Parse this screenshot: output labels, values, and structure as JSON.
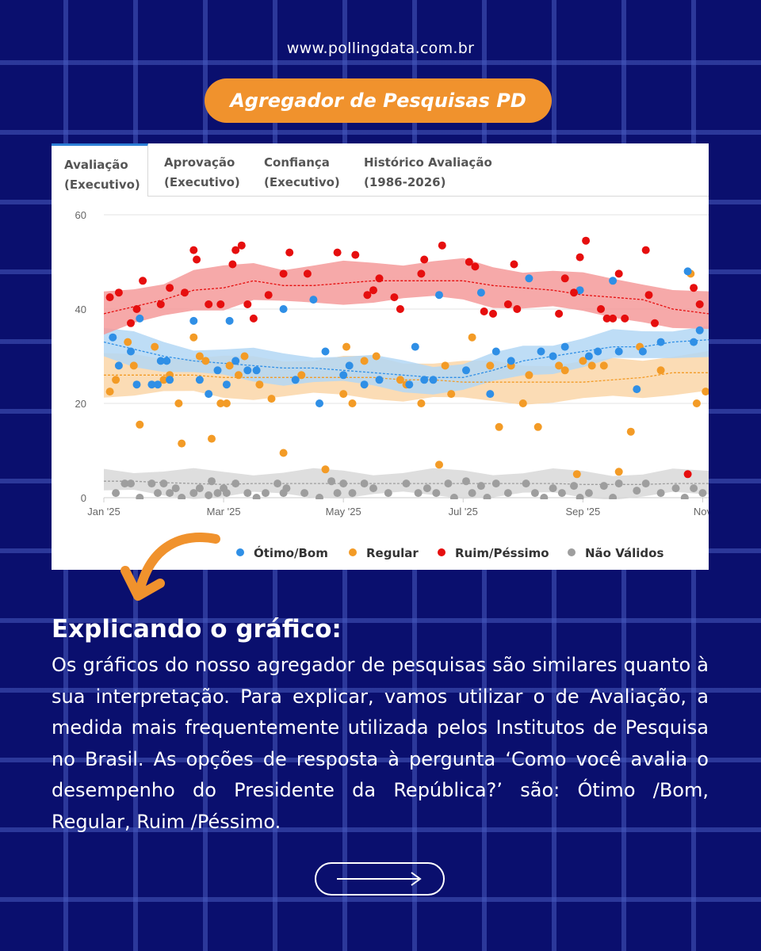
{
  "site_url": "www.pollingdata.com.br",
  "title": "Agregador de Pesquisas PD",
  "tabs": [
    {
      "line1": "Avaliação",
      "line2": "(Executivo)"
    },
    {
      "line1": "Aprovação",
      "line2": "(Executivo)"
    },
    {
      "line1": "Confiança",
      "line2": "(Executivo)"
    },
    {
      "line1": "Histórico Avaliação",
      "line2": "(1986-2026)"
    }
  ],
  "explanation": {
    "heading": "Explicando o gráfico:",
    "body": "Os gráficos do nosso agregador de pesquisas são similares quanto à sua interpretação. Para explicar, vamos utilizar o de Avaliação, a medida mais frequentemente utilizada pelos Institutos de Pesquisa no Brasil. As opções de resposta à pergunta ‘Como você avalia o desempenho do Presidente da República?’ são: Ótimo /Bom, Regular, Ruim /Péssimo."
  },
  "icons": {
    "pointer_arrow": "curved-arrow-icon",
    "next": "right-arrow-icon"
  },
  "chart_data": {
    "type": "scatter",
    "x_tick_labels": [
      "Jan '25",
      "Mar '25",
      "May '25",
      "Jul '25",
      "Sep '25",
      "Nov"
    ],
    "x_tick_months": [
      0,
      2,
      4,
      6,
      8,
      10
    ],
    "y_ticks": [
      0,
      20,
      40,
      60
    ],
    "ylim": [
      0,
      60
    ],
    "xlim_months": [
      0,
      10.1
    ],
    "grid": "horizontal",
    "legend_position": "bottom",
    "series": [
      {
        "name": "Ótimo/Bom",
        "color": "#2f8fe6",
        "band_color": "#b3d7f5",
        "trend": [
          [
            0,
            33
          ],
          [
            0.5,
            31.5
          ],
          [
            1,
            30
          ],
          [
            1.5,
            29
          ],
          [
            2,
            28.5
          ],
          [
            2.5,
            28
          ],
          [
            3,
            27.5
          ],
          [
            3.5,
            27.5
          ],
          [
            4,
            27
          ],
          [
            4.5,
            26.5
          ],
          [
            5,
            26
          ],
          [
            5.5,
            25.5
          ],
          [
            6,
            25.5
          ],
          [
            6.5,
            27
          ],
          [
            7,
            29
          ],
          [
            7.5,
            30
          ],
          [
            8,
            31
          ],
          [
            8.5,
            32
          ],
          [
            9,
            32
          ],
          [
            9.5,
            33
          ],
          [
            10.1,
            33.5
          ]
        ],
        "band": 3,
        "points": [
          [
            0.15,
            34
          ],
          [
            0.25,
            28
          ],
          [
            0.45,
            31
          ],
          [
            0.55,
            24
          ],
          [
            0.6,
            38
          ],
          [
            0.8,
            24
          ],
          [
            0.9,
            24
          ],
          [
            0.95,
            29
          ],
          [
            1.05,
            29
          ],
          [
            1.1,
            25
          ],
          [
            1.5,
            37.5
          ],
          [
            1.6,
            25
          ],
          [
            1.75,
            22
          ],
          [
            1.9,
            27
          ],
          [
            2.05,
            24
          ],
          [
            2.1,
            37.5
          ],
          [
            2.2,
            29
          ],
          [
            2.4,
            27
          ],
          [
            2.55,
            27
          ],
          [
            3.0,
            40
          ],
          [
            3.2,
            25
          ],
          [
            3.5,
            42
          ],
          [
            3.6,
            20
          ],
          [
            3.7,
            31
          ],
          [
            4.0,
            26
          ],
          [
            4.1,
            28
          ],
          [
            4.35,
            24
          ],
          [
            4.6,
            25
          ],
          [
            5.1,
            24
          ],
          [
            5.2,
            32
          ],
          [
            5.35,
            25
          ],
          [
            5.5,
            25
          ],
          [
            5.6,
            43
          ],
          [
            6.05,
            27
          ],
          [
            6.3,
            43.5
          ],
          [
            6.45,
            22
          ],
          [
            6.55,
            31
          ],
          [
            6.8,
            29
          ],
          [
            7.1,
            46.5
          ],
          [
            7.3,
            31
          ],
          [
            7.5,
            30
          ],
          [
            7.7,
            32
          ],
          [
            7.95,
            44
          ],
          [
            8.1,
            30
          ],
          [
            8.25,
            31
          ],
          [
            8.5,
            46
          ],
          [
            8.6,
            31
          ],
          [
            8.9,
            23
          ],
          [
            9.0,
            31
          ],
          [
            9.3,
            33
          ],
          [
            9.75,
            48
          ],
          [
            9.85,
            33
          ],
          [
            9.95,
            35.5
          ]
        ]
      },
      {
        "name": "Regular",
        "color": "#f39b26",
        "band_color": "#fad6a8",
        "trend": [
          [
            0,
            26
          ],
          [
            0.5,
            26
          ],
          [
            1,
            26
          ],
          [
            1.5,
            26
          ],
          [
            2,
            25.5
          ],
          [
            2.5,
            25.5
          ],
          [
            3,
            25.5
          ],
          [
            3.5,
            25.5
          ],
          [
            4,
            25.5
          ],
          [
            4.5,
            25.5
          ],
          [
            5,
            25
          ],
          [
            5.5,
            25
          ],
          [
            6,
            24.5
          ],
          [
            6.5,
            24.5
          ],
          [
            7,
            24.5
          ],
          [
            7.5,
            24.5
          ],
          [
            8,
            24.5
          ],
          [
            8.5,
            25
          ],
          [
            9,
            25.5
          ],
          [
            9.5,
            26.5
          ],
          [
            10.1,
            26.5
          ]
        ],
        "band": 4,
        "points": [
          [
            0.1,
            22.5
          ],
          [
            0.2,
            25
          ],
          [
            0.4,
            33
          ],
          [
            0.5,
            28
          ],
          [
            0.6,
            15.5
          ],
          [
            0.85,
            32
          ],
          [
            1.0,
            25
          ],
          [
            1.1,
            26
          ],
          [
            1.25,
            20
          ],
          [
            1.3,
            11.5
          ],
          [
            1.5,
            34
          ],
          [
            1.6,
            30
          ],
          [
            1.7,
            29
          ],
          [
            1.8,
            12.5
          ],
          [
            1.95,
            20
          ],
          [
            2.05,
            20
          ],
          [
            2.1,
            28
          ],
          [
            2.25,
            26
          ],
          [
            2.35,
            30
          ],
          [
            2.6,
            24
          ],
          [
            2.8,
            21
          ],
          [
            3.0,
            9.5
          ],
          [
            3.3,
            26
          ],
          [
            3.7,
            6
          ],
          [
            4.0,
            22
          ],
          [
            4.05,
            32
          ],
          [
            4.15,
            20
          ],
          [
            4.35,
            29
          ],
          [
            4.55,
            30
          ],
          [
            4.95,
            25
          ],
          [
            5.05,
            24
          ],
          [
            5.3,
            20
          ],
          [
            5.6,
            7
          ],
          [
            5.7,
            28
          ],
          [
            5.8,
            22
          ],
          [
            6.15,
            34
          ],
          [
            6.45,
            28
          ],
          [
            6.6,
            15
          ],
          [
            6.8,
            28
          ],
          [
            7.0,
            20
          ],
          [
            7.1,
            26
          ],
          [
            7.25,
            15
          ],
          [
            7.6,
            28
          ],
          [
            7.7,
            27
          ],
          [
            7.9,
            5
          ],
          [
            8.0,
            29
          ],
          [
            8.15,
            28
          ],
          [
            8.35,
            28
          ],
          [
            8.6,
            5.5
          ],
          [
            8.8,
            14
          ],
          [
            8.95,
            32
          ],
          [
            9.3,
            27
          ],
          [
            9.8,
            47.5
          ],
          [
            9.9,
            20
          ],
          [
            10.05,
            22.5
          ]
        ]
      },
      {
        "name": "Ruim/Péssimo",
        "color": "#e60e0e",
        "band_color": "#f59a9a",
        "trend": [
          [
            0,
            39
          ],
          [
            0.5,
            40.5
          ],
          [
            1,
            42
          ],
          [
            1.5,
            44
          ],
          [
            2,
            44.5
          ],
          [
            2.5,
            46
          ],
          [
            3,
            45
          ],
          [
            3.5,
            45
          ],
          [
            4,
            45.5
          ],
          [
            4.5,
            46
          ],
          [
            5,
            46
          ],
          [
            5.5,
            46
          ],
          [
            6,
            46
          ],
          [
            6.5,
            45
          ],
          [
            7,
            44.5
          ],
          [
            7.5,
            44
          ],
          [
            8,
            43
          ],
          [
            8.5,
            42.5
          ],
          [
            9,
            42
          ],
          [
            9.5,
            40
          ],
          [
            10.1,
            39
          ]
        ],
        "band": 4,
        "points": [
          [
            0.1,
            42.5
          ],
          [
            0.25,
            43.5
          ],
          [
            0.45,
            37
          ],
          [
            0.55,
            40
          ],
          [
            0.65,
            46
          ],
          [
            0.95,
            41
          ],
          [
            1.1,
            44.5
          ],
          [
            1.35,
            43.5
          ],
          [
            1.5,
            52.5
          ],
          [
            1.55,
            50.5
          ],
          [
            1.75,
            41
          ],
          [
            1.95,
            41
          ],
          [
            2.15,
            49.5
          ],
          [
            2.2,
            52.5
          ],
          [
            2.3,
            53.5
          ],
          [
            2.4,
            41
          ],
          [
            2.5,
            38
          ],
          [
            2.75,
            43
          ],
          [
            3.0,
            47.5
          ],
          [
            3.1,
            52
          ],
          [
            3.4,
            47.5
          ],
          [
            3.9,
            52
          ],
          [
            4.2,
            51.5
          ],
          [
            4.4,
            43
          ],
          [
            4.5,
            44
          ],
          [
            4.6,
            46.5
          ],
          [
            4.85,
            42.5
          ],
          [
            4.95,
            40
          ],
          [
            5.3,
            47.5
          ],
          [
            5.35,
            50.5
          ],
          [
            5.65,
            53.5
          ],
          [
            6.1,
            50
          ],
          [
            6.2,
            49
          ],
          [
            6.35,
            39.5
          ],
          [
            6.5,
            39
          ],
          [
            6.75,
            41
          ],
          [
            6.85,
            49.5
          ],
          [
            6.9,
            40
          ],
          [
            7.6,
            39
          ],
          [
            7.7,
            46.5
          ],
          [
            7.85,
            43.5
          ],
          [
            7.95,
            51
          ],
          [
            8.05,
            54.5
          ],
          [
            8.3,
            40
          ],
          [
            8.4,
            38
          ],
          [
            8.5,
            38
          ],
          [
            8.6,
            47.5
          ],
          [
            8.7,
            38
          ],
          [
            9.05,
            52.5
          ],
          [
            9.1,
            43
          ],
          [
            9.2,
            37
          ],
          [
            9.75,
            5
          ],
          [
            9.85,
            44.5
          ],
          [
            9.95,
            41
          ]
        ]
      },
      {
        "name": "Não Válidos",
        "color": "#9e9e9e",
        "band_color": "#d8d8d8",
        "trend": [
          [
            0,
            3.5
          ],
          [
            0.5,
            3.5
          ],
          [
            1,
            3.2
          ],
          [
            1.5,
            3
          ],
          [
            2,
            2.8
          ],
          [
            2.5,
            3
          ],
          [
            3,
            3
          ],
          [
            3.5,
            3
          ],
          [
            4,
            3
          ],
          [
            4.5,
            3
          ],
          [
            5,
            3
          ],
          [
            5.5,
            3
          ],
          [
            6,
            3
          ],
          [
            6.5,
            3
          ],
          [
            7,
            3
          ],
          [
            7.5,
            3
          ],
          [
            8,
            2.8
          ],
          [
            8.5,
            2.8
          ],
          [
            9,
            2.8
          ],
          [
            9.5,
            3
          ],
          [
            10.1,
            3
          ]
        ],
        "band": 2.5,
        "points": [
          [
            0.2,
            1
          ],
          [
            0.35,
            3
          ],
          [
            0.45,
            3
          ],
          [
            0.6,
            0
          ],
          [
            0.8,
            3
          ],
          [
            0.9,
            1
          ],
          [
            1.0,
            3
          ],
          [
            1.1,
            1
          ],
          [
            1.2,
            2
          ],
          [
            1.3,
            0
          ],
          [
            1.5,
            1
          ],
          [
            1.6,
            2
          ],
          [
            1.75,
            0.5
          ],
          [
            1.8,
            3.5
          ],
          [
            1.9,
            1
          ],
          [
            2.0,
            2
          ],
          [
            2.05,
            1
          ],
          [
            2.2,
            3
          ],
          [
            2.4,
            1
          ],
          [
            2.55,
            0
          ],
          [
            2.7,
            1
          ],
          [
            2.9,
            3
          ],
          [
            3.0,
            1
          ],
          [
            3.05,
            2
          ],
          [
            3.35,
            1
          ],
          [
            3.6,
            0
          ],
          [
            3.8,
            3.5
          ],
          [
            3.9,
            1
          ],
          [
            4.0,
            3
          ],
          [
            4.15,
            1
          ],
          [
            4.35,
            3
          ],
          [
            4.5,
            2
          ],
          [
            4.75,
            1
          ],
          [
            5.05,
            3
          ],
          [
            5.25,
            1
          ],
          [
            5.4,
            2
          ],
          [
            5.55,
            1
          ],
          [
            5.75,
            3
          ],
          [
            5.85,
            0
          ],
          [
            6.05,
            3.5
          ],
          [
            6.15,
            1
          ],
          [
            6.3,
            2.5
          ],
          [
            6.4,
            0
          ],
          [
            6.55,
            3
          ],
          [
            6.75,
            1
          ],
          [
            7.05,
            3
          ],
          [
            7.2,
            1
          ],
          [
            7.35,
            0
          ],
          [
            7.5,
            2
          ],
          [
            7.65,
            1
          ],
          [
            7.85,
            2.5
          ],
          [
            7.95,
            0
          ],
          [
            8.1,
            1
          ],
          [
            8.35,
            2.5
          ],
          [
            8.5,
            0
          ],
          [
            8.6,
            3
          ],
          [
            8.9,
            1.5
          ],
          [
            9.05,
            3
          ],
          [
            9.3,
            1
          ],
          [
            9.55,
            2
          ],
          [
            9.7,
            0
          ],
          [
            9.85,
            2
          ],
          [
            10.0,
            1
          ]
        ]
      }
    ]
  }
}
